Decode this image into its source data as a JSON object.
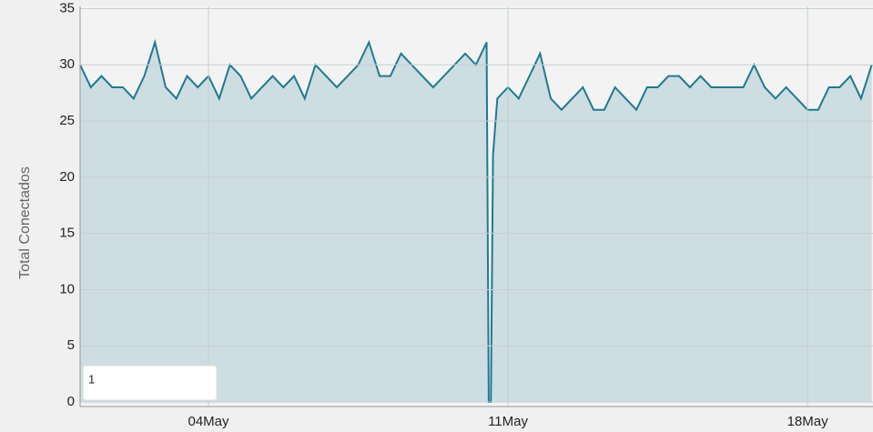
{
  "chart_data": {
    "type": "area",
    "y_label": "Total Conectados",
    "x": [
      1,
      1.25,
      1.5,
      1.75,
      2,
      2.25,
      2.5,
      2.75,
      3,
      3.25,
      3.5,
      3.75,
      4,
      4.25,
      4.5,
      4.75,
      5,
      5.25,
      5.5,
      5.75,
      6,
      6.25,
      6.5,
      6.75,
      7,
      7.25,
      7.5,
      7.75,
      8,
      8.25,
      8.5,
      8.75,
      9,
      9.25,
      9.5,
      9.75,
      10,
      10.25,
      10.5,
      10.55,
      10.6,
      10.65,
      10.75,
      11,
      11.25,
      11.5,
      11.75,
      12,
      12.25,
      12.5,
      12.75,
      13,
      13.25,
      13.5,
      13.75,
      14,
      14.25,
      14.5,
      14.75,
      15,
      15.25,
      15.5,
      15.75,
      16,
      16.25,
      16.5,
      16.75,
      17,
      17.25,
      17.5,
      17.75,
      18,
      18.25,
      18.5,
      18.75,
      19,
      19.25,
      19.5
    ],
    "series": [
      {
        "name": "Total Conectados",
        "color": "#1f7a91",
        "values": [
          30,
          28,
          29,
          28,
          28,
          27,
          29,
          32,
          28,
          27,
          29,
          28,
          29,
          27,
          30,
          29,
          27,
          28,
          29,
          28,
          29,
          27,
          30,
          29,
          28,
          29,
          30,
          32,
          29,
          29,
          31,
          30,
          29,
          28,
          29,
          30,
          31,
          30,
          32,
          0,
          0,
          22,
          27,
          28,
          27,
          29,
          31,
          27,
          26,
          27,
          28,
          26,
          26,
          28,
          27,
          26,
          28,
          28,
          29,
          29,
          28,
          29,
          28,
          28,
          28,
          28,
          30,
          28,
          27,
          28,
          27,
          26,
          26,
          28,
          28,
          29,
          27,
          30
        ]
      }
    ],
    "xlim": [
      1,
      19.53
    ],
    "xticks": [
      {
        "value": 4,
        "label": "04May"
      },
      {
        "value": 11,
        "label": "11May"
      },
      {
        "value": 18,
        "label": "18May"
      }
    ],
    "ylim": [
      -0.4,
      35.2
    ],
    "yticks": [
      0,
      5,
      10,
      15,
      20,
      25,
      30,
      35
    ],
    "grid": true,
    "input_value": "1"
  }
}
